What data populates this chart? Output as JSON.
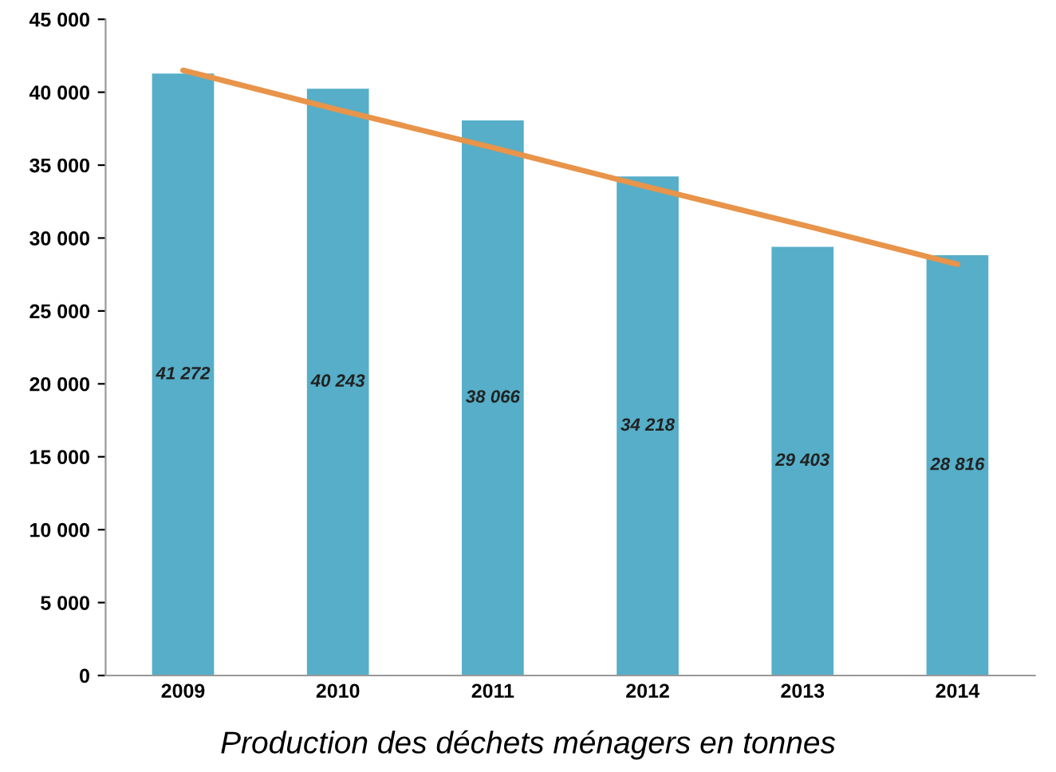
{
  "chart_data": {
    "type": "bar",
    "title": "Production des déchets ménagers en tonnes",
    "categories": [
      "2009",
      "2010",
      "2011",
      "2012",
      "2013",
      "2014"
    ],
    "series": [
      {
        "color": "#56aec8",
        "values": [
          41272,
          40243,
          38066,
          34218,
          29403,
          28816
        ],
        "value_labels": [
          "41 272",
          "40 243",
          "38 066",
          "34 218",
          "29 403",
          "28 816"
        ]
      },
      {
        "type": "line",
        "color": "#e8944a",
        "values": [
          41500,
          38800,
          36200,
          33500,
          30900,
          28200
        ]
      }
    ],
    "ylim": [
      0,
      45000
    ],
    "yticks": [
      0,
      {
        "value": 5000,
        "label": "5 000"
      },
      {
        "value": 10000,
        "label": "10 000"
      },
      {
        "value": 15000,
        "label": "15 000"
      },
      {
        "value": 20000,
        "label": "20 000"
      },
      {
        "value": 25000,
        "label": "25 000"
      },
      {
        "value": 30000,
        "label": "30 000"
      },
      {
        "value": 35000,
        "label": "35 000"
      },
      {
        "value": 40000,
        "label": "40 000"
      },
      {
        "value": 45000,
        "label": "45 000"
      }
    ],
    "grid": false,
    "legend": false
  }
}
